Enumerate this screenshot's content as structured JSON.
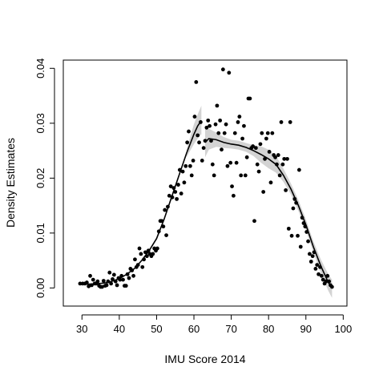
{
  "chart_data": {
    "type": "scatter",
    "title": "",
    "xlabel": "IMU Score 2014",
    "ylabel": "Density Estimates",
    "xlim": [
      25,
      101
    ],
    "ylim": [
      -0.0033,
      0.0415
    ],
    "xticks": [
      30,
      40,
      50,
      60,
      70,
      80,
      90,
      100
    ],
    "yticks": [
      0.0,
      0.01,
      0.02,
      0.03,
      0.04
    ],
    "ytick_labels": [
      "0.00",
      "0.01",
      "0.02",
      "0.03",
      "0.04"
    ],
    "grid": false,
    "legend": "none",
    "colors": {
      "points": "#000000",
      "fit_line": "#000000",
      "confidence_band": "#d3d3d3"
    },
    "series": [
      {
        "kind": "points",
        "points": [
          [
            29.5,
            0.0008
          ],
          [
            30.2,
            0.0008
          ],
          [
            30.8,
            0.0008
          ],
          [
            31.3,
            0.001
          ],
          [
            31.8,
            0.0003
          ],
          [
            32.2,
            0.0022
          ],
          [
            32.6,
            0.0005
          ],
          [
            33.0,
            0.0015
          ],
          [
            33.4,
            0.0008
          ],
          [
            33.8,
            0.0008
          ],
          [
            34.2,
            0.0012
          ],
          [
            34.6,
            0.0004
          ],
          [
            35.0,
            0.0002
          ],
          [
            35.4,
            0.0002
          ],
          [
            35.8,
            0.0013
          ],
          [
            36.2,
            0.0004
          ],
          [
            36.6,
            0.0005
          ],
          [
            37.0,
            0.0012
          ],
          [
            37.4,
            0.0028
          ],
          [
            37.8,
            0.0008
          ],
          [
            38.2,
            0.0016
          ],
          [
            38.6,
            0.0024
          ],
          [
            39.0,
            0.0012
          ],
          [
            39.4,
            0.0005
          ],
          [
            39.8,
            0.0018
          ],
          [
            40.2,
            0.0015
          ],
          [
            40.6,
            0.0022
          ],
          [
            41.0,
            0.0015
          ],
          [
            41.4,
            0.0004
          ],
          [
            41.8,
            0.0004
          ],
          [
            42.2,
            0.0025
          ],
          [
            42.6,
            0.0018
          ],
          [
            43.0,
            0.0035
          ],
          [
            43.4,
            0.0032
          ],
          [
            43.8,
            0.0022
          ],
          [
            44.2,
            0.0052
          ],
          [
            44.6,
            0.0038
          ],
          [
            45.0,
            0.0042
          ],
          [
            45.4,
            0.0072
          ],
          [
            45.8,
            0.0062
          ],
          [
            46.2,
            0.0038
          ],
          [
            46.6,
            0.0052
          ],
          [
            47.0,
            0.0065
          ],
          [
            47.4,
            0.0058
          ],
          [
            47.8,
            0.0068
          ],
          [
            48.2,
            0.0062
          ],
          [
            48.6,
            0.0058
          ],
          [
            49.0,
            0.0062
          ],
          [
            49.4,
            0.0072
          ],
          [
            49.8,
            0.0068
          ],
          [
            50.2,
            0.0072
          ],
          [
            50.6,
            0.0103
          ],
          [
            51.0,
            0.0122
          ],
          [
            51.4,
            0.0122
          ],
          [
            51.8,
            0.0112
          ],
          [
            52.2,
            0.0142
          ],
          [
            52.6,
            0.0096
          ],
          [
            53.0,
            0.0148
          ],
          [
            53.4,
            0.0168
          ],
          [
            53.8,
            0.0185
          ],
          [
            54.2,
            0.0165
          ],
          [
            54.6,
            0.0182
          ],
          [
            55.0,
            0.0175
          ],
          [
            55.4,
            0.0162
          ],
          [
            55.8,
            0.0188
          ],
          [
            56.2,
            0.0215
          ],
          [
            56.6,
            0.0172
          ],
          [
            57.0,
            0.0212
          ],
          [
            57.4,
            0.0192
          ],
          [
            57.8,
            0.0222
          ],
          [
            58.2,
            0.0265
          ],
          [
            58.6,
            0.0285
          ],
          [
            59.0,
            0.0222
          ],
          [
            59.4,
            0.0205
          ],
          [
            59.8,
            0.0232
          ],
          [
            60.2,
            0.0312
          ],
          [
            60.6,
            0.0375
          ],
          [
            61.0,
            0.0278
          ],
          [
            61.4,
            0.0265
          ],
          [
            61.8,
            0.0302
          ],
          [
            62.2,
            0.0232
          ],
          [
            62.6,
            0.0255
          ],
          [
            63.0,
            0.0268
          ],
          [
            63.4,
            0.0292
          ],
          [
            63.8,
            0.0305
          ],
          [
            64.2,
            0.0295
          ],
          [
            64.6,
            0.0268
          ],
          [
            65.0,
            0.0225
          ],
          [
            65.4,
            0.0205
          ],
          [
            65.8,
            0.0298
          ],
          [
            66.2,
            0.0332
          ],
          [
            66.6,
            0.0282
          ],
          [
            67.0,
            0.0305
          ],
          [
            67.4,
            0.0252
          ],
          [
            67.8,
            0.0398
          ],
          [
            68.2,
            0.0282
          ],
          [
            68.6,
            0.0298
          ],
          [
            69.0,
            0.0222
          ],
          [
            69.4,
            0.0392
          ],
          [
            69.8,
            0.0228
          ],
          [
            70.2,
            0.0185
          ],
          [
            70.6,
            0.0168
          ],
          [
            71.0,
            0.0282
          ],
          [
            71.4,
            0.0228
          ],
          [
            71.8,
            0.0302
          ],
          [
            72.2,
            0.0312
          ],
          [
            72.6,
            0.0205
          ],
          [
            73.0,
            0.0272
          ],
          [
            73.4,
            0.0295
          ],
          [
            73.8,
            0.0205
          ],
          [
            74.2,
            0.0238
          ],
          [
            74.6,
            0.0345
          ],
          [
            75.0,
            0.0345
          ],
          [
            75.4,
            0.0255
          ],
          [
            75.8,
            0.0258
          ],
          [
            76.2,
            0.0122
          ],
          [
            76.6,
            0.0255
          ],
          [
            77.0,
            0.0225
          ],
          [
            77.4,
            0.0212
          ],
          [
            77.8,
            0.0262
          ],
          [
            78.2,
            0.0282
          ],
          [
            78.6,
            0.0175
          ],
          [
            79.0,
            0.0235
          ],
          [
            79.4,
            0.0272
          ],
          [
            79.8,
            0.0282
          ],
          [
            80.2,
            0.0248
          ],
          [
            80.6,
            0.0192
          ],
          [
            81.0,
            0.0282
          ],
          [
            81.4,
            0.0242
          ],
          [
            81.8,
            0.0238
          ],
          [
            82.2,
            0.0225
          ],
          [
            82.6,
            0.0242
          ],
          [
            83.0,
            0.0205
          ],
          [
            83.4,
            0.0302
          ],
          [
            83.8,
            0.0225
          ],
          [
            84.2,
            0.0235
          ],
          [
            84.6,
            0.0178
          ],
          [
            85.0,
            0.0235
          ],
          [
            85.4,
            0.0108
          ],
          [
            85.8,
            0.0302
          ],
          [
            86.2,
            0.0095
          ],
          [
            86.6,
            0.0145
          ],
          [
            87.0,
            0.0162
          ],
          [
            87.4,
            0.0155
          ],
          [
            87.8,
            0.0095
          ],
          [
            88.2,
            0.0215
          ],
          [
            88.6,
            0.0075
          ],
          [
            89.0,
            0.0128
          ],
          [
            89.4,
            0.0118
          ],
          [
            89.8,
            0.0112
          ],
          [
            90.2,
            0.0102
          ],
          [
            90.6,
            0.0085
          ],
          [
            91.0,
            0.0062
          ],
          [
            91.4,
            0.0048
          ],
          [
            91.8,
            0.0058
          ],
          [
            92.2,
            0.0065
          ],
          [
            92.6,
            0.0035
          ],
          [
            93.0,
            0.0042
          ],
          [
            93.4,
            0.0025
          ],
          [
            93.8,
            0.0038
          ],
          [
            94.2,
            0.0022
          ],
          [
            94.6,
            0.0015
          ],
          [
            95.0,
            0.0008
          ],
          [
            95.4,
            0.0012
          ],
          [
            95.8,
            0.0022
          ],
          [
            96.2,
            0.0012
          ],
          [
            96.6,
            0.0005
          ],
          [
            97.0,
            0.0002
          ]
        ]
      },
      {
        "kind": "fit_line_left",
        "points": [
          [
            29.5,
            0.0007
          ],
          [
            33,
            0.0007
          ],
          [
            36,
            0.0009
          ],
          [
            38,
            0.0012
          ],
          [
            40,
            0.0017
          ],
          [
            42,
            0.0025
          ],
          [
            44,
            0.0035
          ],
          [
            46,
            0.005
          ],
          [
            48,
            0.0068
          ],
          [
            50,
            0.009
          ],
          [
            52,
            0.0125
          ],
          [
            54,
            0.0165
          ],
          [
            56,
            0.0205
          ],
          [
            58,
            0.0245
          ],
          [
            60,
            0.028
          ],
          [
            61,
            0.0295
          ],
          [
            62,
            0.0305
          ]
        ]
      },
      {
        "kind": "fit_line_right",
        "points": [
          [
            63,
            0.0265
          ],
          [
            64,
            0.0272
          ],
          [
            66,
            0.027
          ],
          [
            68,
            0.0265
          ],
          [
            70,
            0.0262
          ],
          [
            72,
            0.026
          ],
          [
            74,
            0.0256
          ],
          [
            76,
            0.025
          ],
          [
            78,
            0.0243
          ],
          [
            80,
            0.0235
          ],
          [
            82,
            0.0225
          ],
          [
            84,
            0.0205
          ],
          [
            86,
            0.018
          ],
          [
            88,
            0.015
          ],
          [
            90,
            0.0115
          ],
          [
            92,
            0.0075
          ],
          [
            94,
            0.004
          ],
          [
            96,
            0.001
          ],
          [
            97,
            0.0
          ]
        ]
      },
      {
        "kind": "confidence_band_left",
        "lower": [
          [
            58,
            0.0238
          ],
          [
            60,
            0.0262
          ],
          [
            61,
            0.0272
          ],
          [
            62,
            0.028
          ]
        ],
        "upper": [
          [
            58,
            0.0252
          ],
          [
            60,
            0.0298
          ],
          [
            61,
            0.0316
          ],
          [
            62,
            0.0332
          ]
        ]
      },
      {
        "kind": "confidence_band_right",
        "lower": [
          [
            63,
            0.0238
          ],
          [
            64,
            0.0252
          ],
          [
            66,
            0.0257
          ],
          [
            68,
            0.0255
          ],
          [
            70,
            0.0254
          ],
          [
            72,
            0.0252
          ],
          [
            74,
            0.0248
          ],
          [
            76,
            0.024
          ],
          [
            78,
            0.0228
          ],
          [
            80,
            0.0218
          ],
          [
            82,
            0.021
          ],
          [
            84,
            0.0193
          ],
          [
            86,
            0.017
          ],
          [
            88,
            0.014
          ],
          [
            90,
            0.0105
          ],
          [
            92,
            0.0065
          ],
          [
            94,
            0.0028
          ],
          [
            96,
            -0.0005
          ],
          [
            97,
            -0.0018
          ]
        ],
        "upper": [
          [
            63,
            0.029
          ],
          [
            64,
            0.029
          ],
          [
            66,
            0.0283
          ],
          [
            68,
            0.0275
          ],
          [
            70,
            0.027
          ],
          [
            72,
            0.0268
          ],
          [
            74,
            0.0264
          ],
          [
            76,
            0.026
          ],
          [
            78,
            0.0258
          ],
          [
            80,
            0.0252
          ],
          [
            82,
            0.024
          ],
          [
            84,
            0.0217
          ],
          [
            86,
            0.019
          ],
          [
            88,
            0.016
          ],
          [
            90,
            0.0125
          ],
          [
            92,
            0.0085
          ],
          [
            94,
            0.0052
          ],
          [
            96,
            0.0025
          ],
          [
            97,
            0.0015
          ]
        ]
      }
    ]
  }
}
